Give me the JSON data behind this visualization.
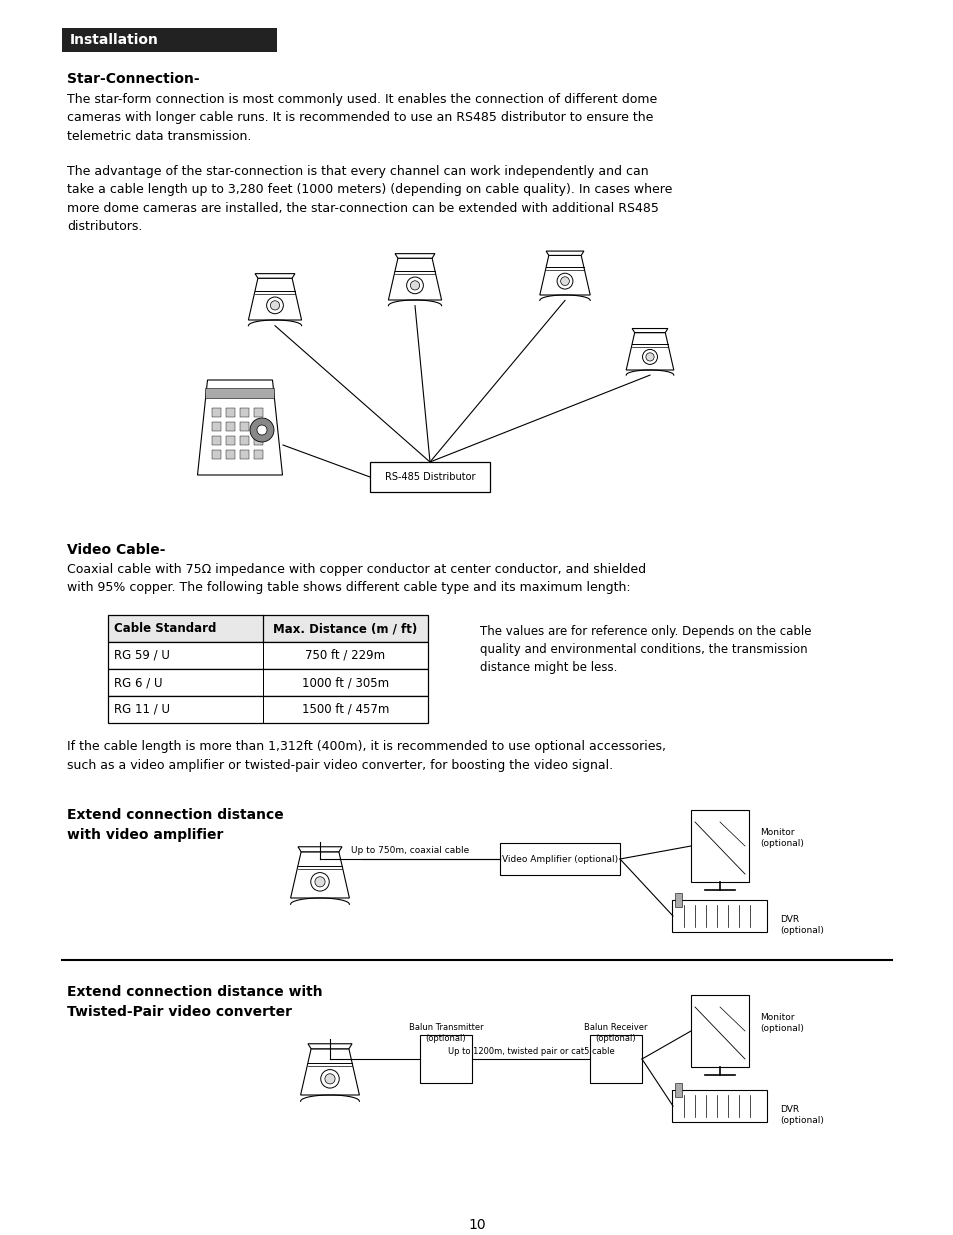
{
  "title_box": {
    "text": "Installation",
    "bg_color": "#222222",
    "text_color": "#ffffff",
    "font_size": 10
  },
  "star_connection_title": "Star-Connection-",
  "star_connection_body": "The star-form connection is most commonly used. It enables the connection of different dome\ncameras with longer cable runs. It is recommended to use an RS485 distributor to ensure the\ntelemetric data transmission.",
  "star_connection_body2": "The advantage of the star-connection is that every channel can work independently and can\ntake a cable length up to 3,280 feet (1000 meters) (depending on cable quality). In cases where\nmore dome cameras are installed, the star-connection can be extended with additional RS485\ndistributors.",
  "video_cable_title": "Video Cable-",
  "video_cable_body": "Coaxial cable with 75Ω impedance with copper conductor at center conductor, and shielded\nwith 95% copper. The following table shows different cable type and its maximum length:",
  "table_headers": [
    "Cable Standard",
    "Max. Distance (m / ft)"
  ],
  "table_rows": [
    [
      "RG 59 / U",
      "750 ft / 229m"
    ],
    [
      "RG 6 / U",
      "1000 ft / 305m"
    ],
    [
      "RG 11 / U",
      "1500 ft / 457m"
    ]
  ],
  "table_note": "The values are for reference only. Depends on the cable\nquality and environmental conditions, the transmission\ndistance might be less.",
  "cable_length_note": "If the cable length is more than 1,312ft (400m), it is recommended to use optional accessories,\nsuch as a video amplifier or twisted-pair video converter, for boosting the video signal.",
  "extend1_label": "Extend connection distance\nwith video amplifier",
  "extend1_cable_label": "Up to 750m, coaxial cable",
  "extend1_amp_label": "Video Amplifier (optional)",
  "extend1_monitor_label": "Monitor\n(optional)",
  "extend1_dvr_label": "DVR\n(optional)",
  "extend2_label": "Extend connection distance with\nTwisted-Pair video converter",
  "extend2_tx_label": "Balun Transmitter\n(optional)",
  "extend2_rx_label": "Balun Receiver\n(optional)",
  "extend2_cable_label": "Up to 1200m, twisted pair or cat5 cable",
  "extend2_monitor_label": "Monitor\n(optional)",
  "extend2_dvr_label": "DVR\n(optional)",
  "page_number": "10",
  "rs485_label": "RS-485 Distributor",
  "bg_color": "#ffffff",
  "text_color": "#000000"
}
